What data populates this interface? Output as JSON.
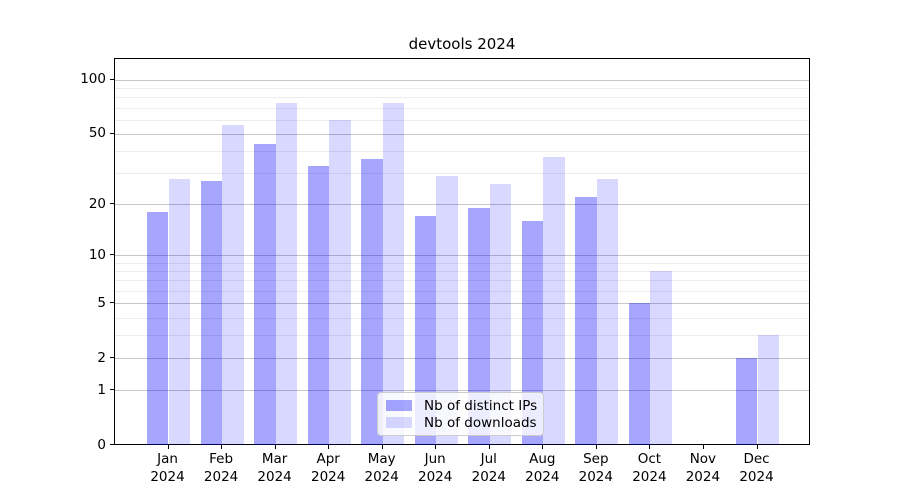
{
  "chart_data": {
    "type": "bar",
    "title": "devtools 2024",
    "categories": [
      {
        "month": "Jan",
        "year": "2024"
      },
      {
        "month": "Feb",
        "year": "2024"
      },
      {
        "month": "Mar",
        "year": "2024"
      },
      {
        "month": "Apr",
        "year": "2024"
      },
      {
        "month": "May",
        "year": "2024"
      },
      {
        "month": "Jun",
        "year": "2024"
      },
      {
        "month": "Jul",
        "year": "2024"
      },
      {
        "month": "Aug",
        "year": "2024"
      },
      {
        "month": "Sep",
        "year": "2024"
      },
      {
        "month": "Oct",
        "year": "2024"
      },
      {
        "month": "Nov",
        "year": "2024"
      },
      {
        "month": "Dec",
        "year": "2024"
      }
    ],
    "series": [
      {
        "name": "Nb of distinct IPs",
        "color": "rgba(0,0,255,0.35)",
        "values": [
          18,
          27,
          44,
          33,
          36,
          17,
          19,
          16,
          22,
          5,
          0,
          2
        ]
      },
      {
        "name": "Nb of downloads",
        "color": "rgba(0,0,255,0.15)",
        "values": [
          28,
          56,
          74,
          60,
          74,
          29,
          26,
          37,
          28,
          8,
          0,
          3
        ]
      }
    ],
    "xlabel": "",
    "ylabel": "",
    "yscale": "log1p",
    "ylim": [
      0,
      131
    ],
    "yticks": [
      0,
      1,
      2,
      5,
      10,
      20,
      50,
      100
    ],
    "yticks_minor": [
      3,
      4,
      6,
      7,
      8,
      9,
      30,
      40,
      60,
      70,
      80,
      90
    ],
    "grid": "on",
    "legend_position": "lower center"
  },
  "colors": {
    "grid_major": "#c6c6c6",
    "grid_minor": "#ececec",
    "spine": "#000000",
    "background": "#ffffff"
  }
}
